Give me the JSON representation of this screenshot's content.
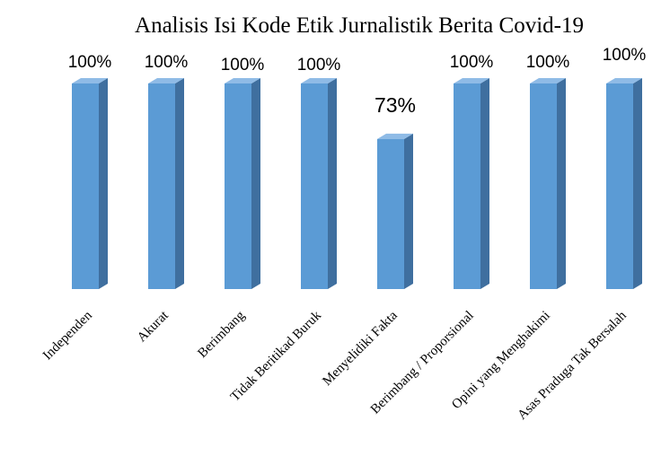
{
  "chart_data": {
    "type": "bar",
    "title": "Analisis Isi Kode Etik Jurnalistik Berita Covid-19",
    "categories": [
      "Independen",
      "Akurat",
      "Berimbang",
      "Tidak Beritikad Buruk",
      "Menyelidiki Fakta",
      "Berimbang / Proporsional",
      "Opini yang Menghakimi",
      "Asas Praduga Tak Bersalah"
    ],
    "values": [
      100,
      100,
      100,
      100,
      73,
      100,
      100,
      100
    ],
    "data_labels": [
      "100%",
      "100%",
      "100%",
      "100%",
      "73%",
      "100%",
      "100%",
      "100%"
    ],
    "ylim": [
      0,
      100
    ],
    "grid": false,
    "legend": "none",
    "style": "3d-column",
    "colors": {
      "front": "#5b9bd5",
      "side": "#3f6f9f",
      "top": "#8fbbe6"
    }
  }
}
